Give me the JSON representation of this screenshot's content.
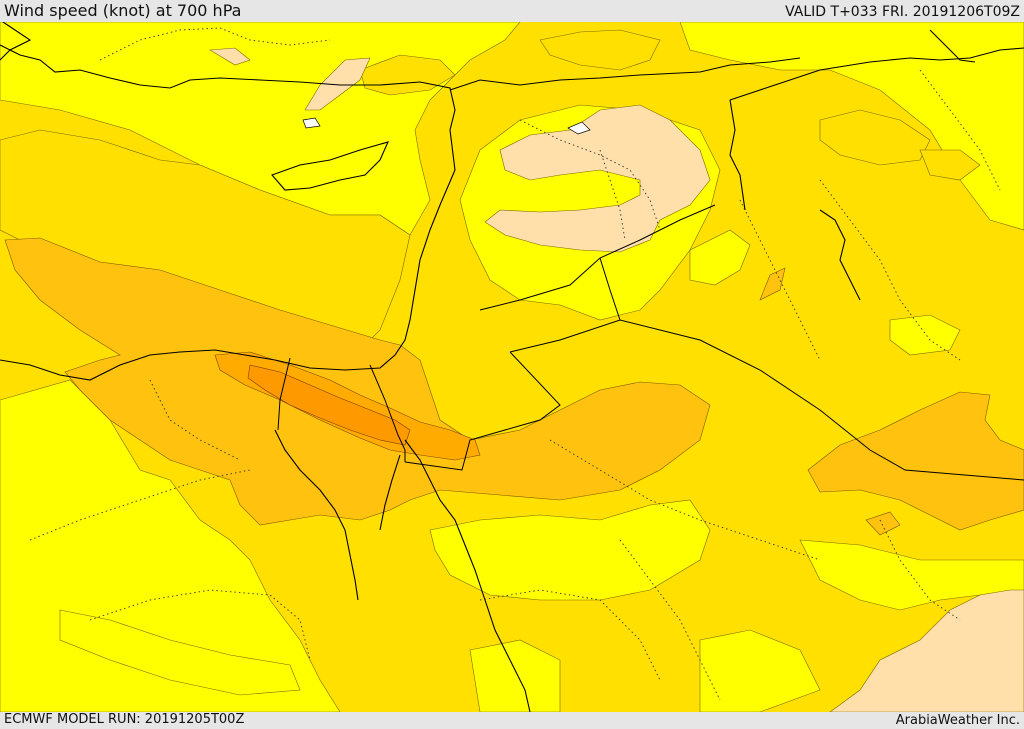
{
  "header": {
    "title": "Wind speed (knot) at 700 hPa",
    "valid": "VALID T+033 FRI. 20191206T09Z"
  },
  "footer": {
    "model_run": "ECMWF MODEL RUN: 20191205T00Z",
    "credit": "ArabiaWeather Inc."
  },
  "colors": {
    "band_lowest": "#ffff00",
    "band_low": "#ffe000",
    "band_mid": "#ffc20e",
    "band_high": "#ffab00",
    "band_highest": "#ff9900",
    "calm": "#ffdfaa",
    "frame": "#e6e6e6",
    "coastline": "#000000"
  }
}
